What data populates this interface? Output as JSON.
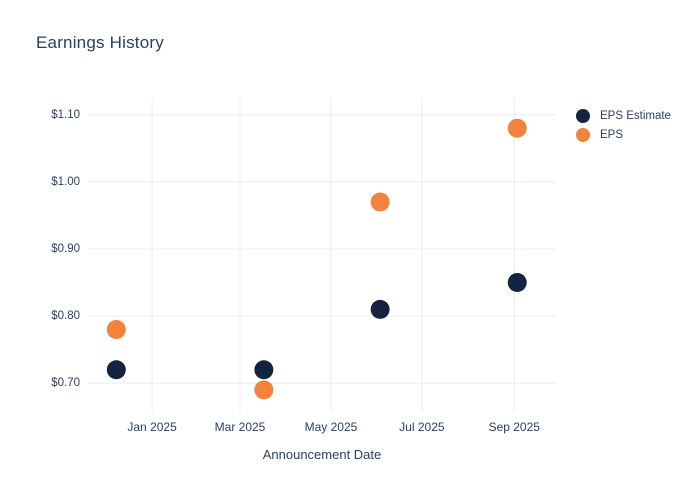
{
  "chart_data": {
    "type": "scatter",
    "title": "Earnings History",
    "xlabel": "Announcement Date",
    "ylabel": "",
    "grid": true,
    "legend_position": "right",
    "x_axis": {
      "range": [
        "2024-11-19",
        "2025-09-29"
      ],
      "ticks": [
        "2025-01-01",
        "2025-03-01",
        "2025-05-01",
        "2025-07-01",
        "2025-09-01"
      ],
      "tick_labels": [
        "Jan 2025",
        "Mar 2025",
        "May 2025",
        "Jul 2025",
        "Sep 2025"
      ]
    },
    "y_axis": {
      "range": [
        0.657,
        1.125
      ],
      "ticks": [
        0.7,
        0.8,
        0.9,
        1.0,
        1.1
      ],
      "tick_labels": [
        "$0.70",
        "$0.80",
        "$0.90",
        "$1.00",
        "$1.10"
      ]
    },
    "x_announcement_dates_estimated": [
      "2024-12-08",
      "2025-03-17",
      "2025-06-03",
      "2025-09-03"
    ],
    "series": [
      {
        "name": "EPS Estimate",
        "marker": "circle",
        "color": "#12243e",
        "values": [
          0.72,
          0.72,
          0.81,
          0.85
        ]
      },
      {
        "name": "EPS",
        "marker": "circle",
        "color": "#f2823c",
        "values": [
          0.78,
          0.69,
          0.97,
          1.08
        ]
      }
    ]
  },
  "colors": {
    "text": "#2a3f5f",
    "grid": "#e8edf4",
    "background": "#ffffff"
  }
}
